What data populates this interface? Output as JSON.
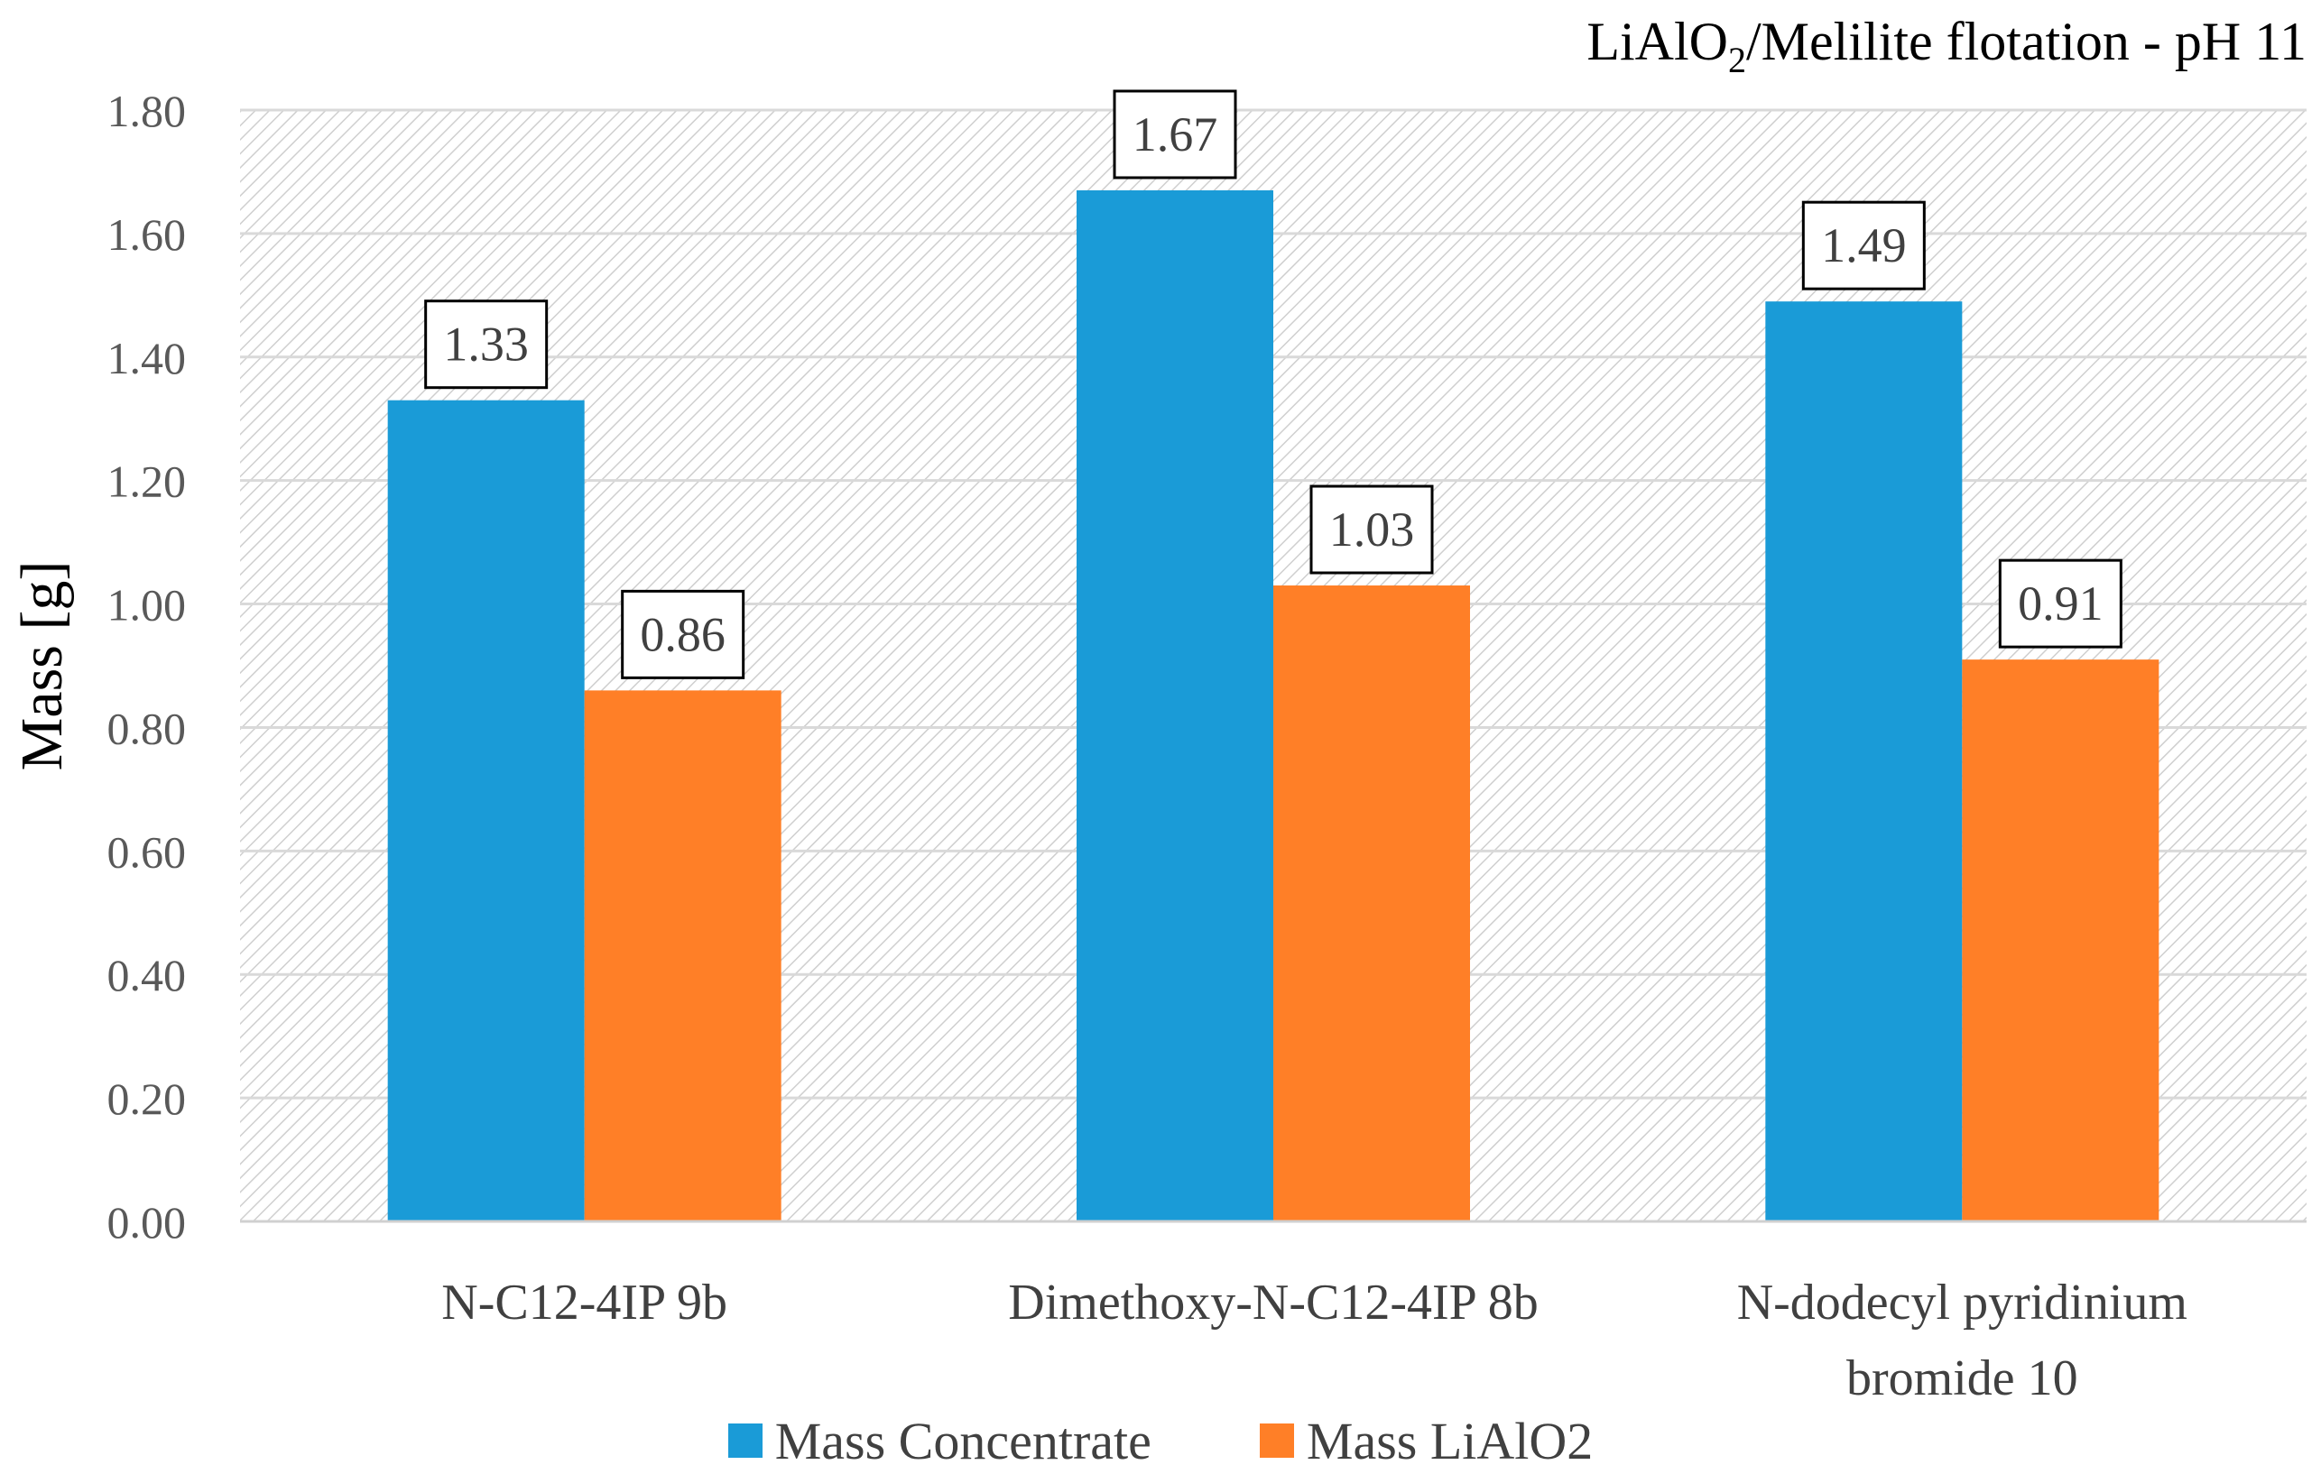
{
  "chart_data": {
    "type": "bar",
    "title": {
      "prefix": "LiAlO",
      "subscript": "2",
      "suffix": "/Melilite flotation - pH 11"
    },
    "ylabel": "Mass [g]",
    "xlabel": "",
    "ylim": [
      0,
      1.8
    ],
    "yticks": [
      "0.00",
      "0.20",
      "0.40",
      "0.60",
      "0.80",
      "1.00",
      "1.20",
      "1.40",
      "1.60",
      "1.80"
    ],
    "categories": [
      [
        "N-C12-4IP 9b"
      ],
      [
        "Dimethoxy-N-C12-4IP 8b"
      ],
      [
        "N-dodecyl pyridinium",
        "bromide 10"
      ]
    ],
    "series": [
      {
        "name": "Mass Concentrate",
        "color": "#1A9BD7",
        "values": [
          1.33,
          1.67,
          1.49
        ],
        "labels": [
          "1.33",
          "1.67",
          "1.49"
        ]
      },
      {
        "name": "Mass LiAlO2",
        "color": "#FF7F27",
        "values": [
          0.86,
          1.03,
          0.91
        ],
        "labels": [
          "0.86",
          "1.03",
          "0.91"
        ]
      }
    ],
    "grid": true,
    "legend": "bottom"
  }
}
